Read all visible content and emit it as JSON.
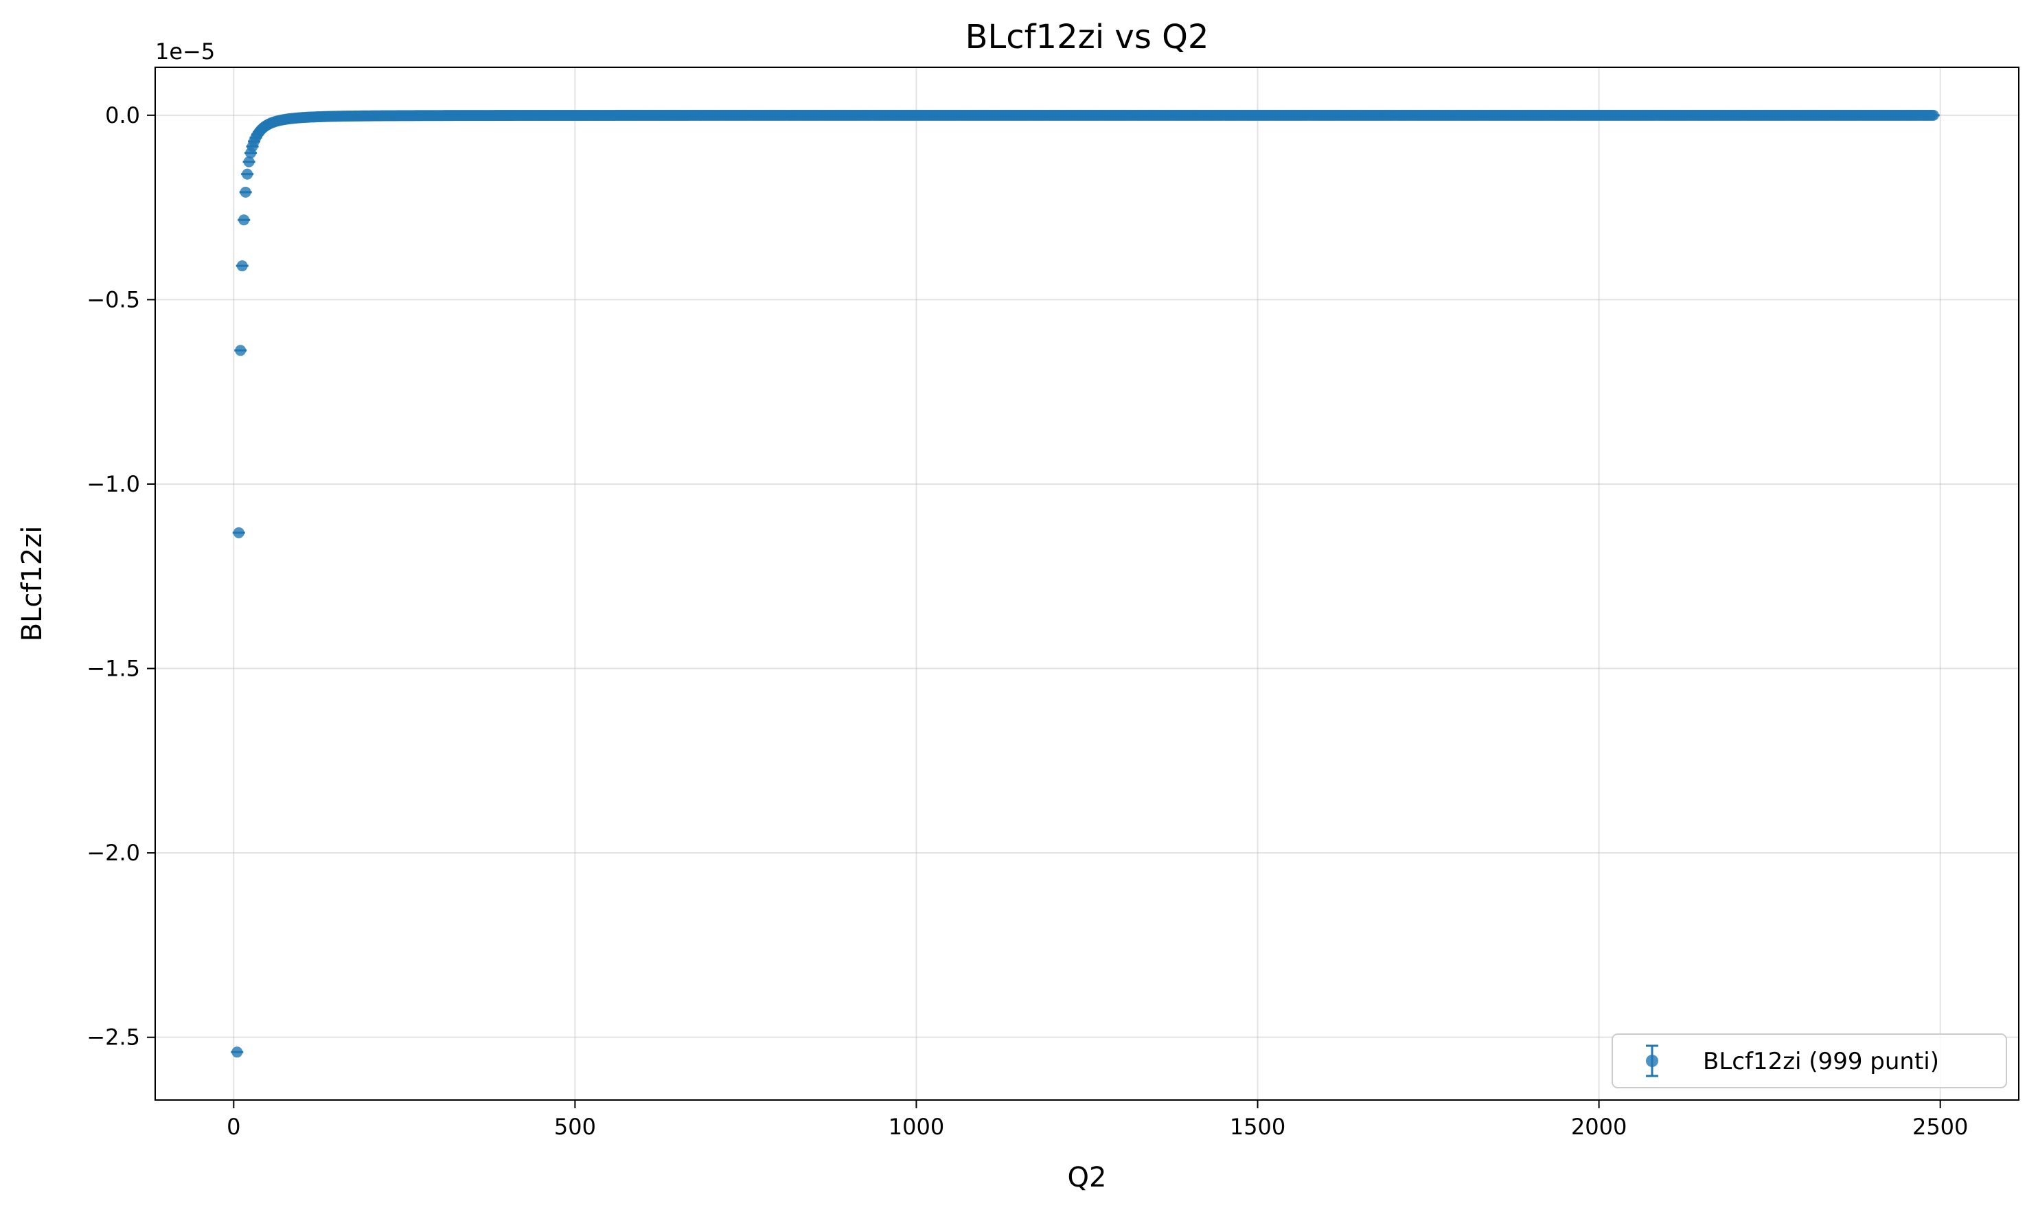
{
  "chart_data": {
    "type": "scatter",
    "title": "BLcf12zi vs Q2",
    "xlabel": "Q2",
    "ylabel": "BLcf12zi",
    "y_offset_label": "1e−5",
    "xlim": [
      -115,
      2615
    ],
    "ylim": [
      -2.67,
      0.13
    ],
    "y_scale_factor": 1e-05,
    "x_ticks": [
      0,
      500,
      1000,
      1500,
      2000,
      2500
    ],
    "x_tick_labels": [
      "0",
      "500",
      "1000",
      "1500",
      "2000",
      "2500"
    ],
    "y_ticks": [
      0.0,
      -0.5,
      -1.0,
      -1.5,
      -2.0,
      -2.5
    ],
    "y_tick_labels": [
      "0.0",
      "−0.5",
      "−1.0",
      "−1.5",
      "−2.0",
      "−2.5"
    ],
    "grid": true,
    "legend_position": "lower-right",
    "series": [
      {
        "name": "BLcf12zi (999 punti)",
        "color": "#1f77b4",
        "marker": "circle",
        "error_bars": true,
        "x_range": [
          5,
          2490
        ],
        "n_points": 999,
        "model": "y = -2.54 * (5 / x)^2"
      }
    ]
  }
}
